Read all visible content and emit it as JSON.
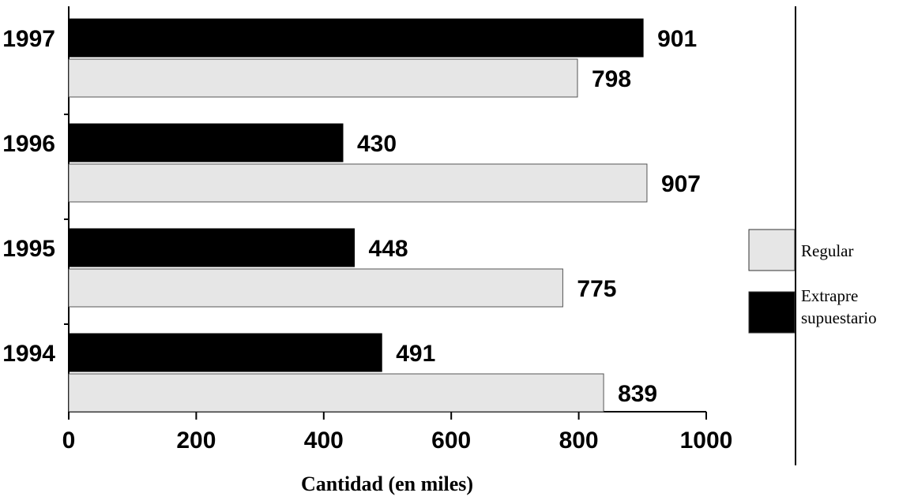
{
  "chart_data": {
    "type": "bar",
    "orientation": "horizontal",
    "categories": [
      "1997",
      "1996",
      "1995",
      "1994"
    ],
    "series": [
      {
        "name": "Extrapre supuestario",
        "color": "#000000",
        "values": [
          901,
          430,
          448,
          491
        ]
      },
      {
        "name": "Regular",
        "color": "#e6e6e6",
        "values": [
          798,
          907,
          775,
          839
        ]
      }
    ],
    "title": "",
    "xlabel": "Cantidad (en miles)",
    "ylabel": "",
    "xlim": [
      0,
      1000
    ],
    "xticks": [
      "0",
      "200",
      "400",
      "600",
      "800",
      "1000"
    ],
    "grid": false,
    "legend": {
      "position": "right",
      "items": [
        {
          "label_lines": [
            "Regular"
          ],
          "color": "#e6e6e6"
        },
        {
          "label_lines": [
            "Extrapre",
            "supuestario"
          ],
          "color": "#000000"
        }
      ]
    }
  }
}
